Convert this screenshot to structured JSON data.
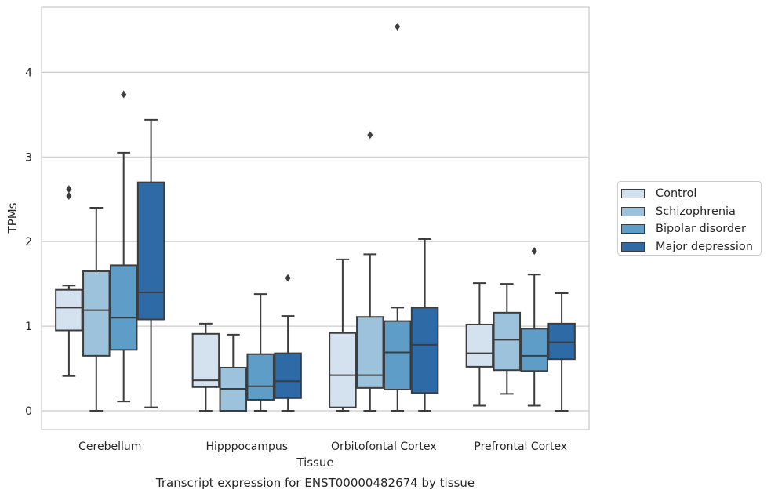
{
  "chart_data": {
    "type": "box",
    "title": "",
    "xlabel": "Tissue",
    "ylabel": "TPMs",
    "caption": "Transcript expression for ENST00000482674 by tissue",
    "ylim": [
      -0.22,
      4.77
    ],
    "yticks": [
      "0",
      "1",
      "2",
      "3",
      "4"
    ],
    "grid": "horizontal",
    "legend_position": "right",
    "categories": [
      "Cerebellum",
      "Hipppocampus",
      "Orbitofontal Cortex",
      "Prefrontal Cortex"
    ],
    "series": [
      {
        "name": "Control",
        "color": "#d4e2f0",
        "boxes": [
          {
            "min": 0.41,
            "q1": 0.95,
            "median": 1.22,
            "q3": 1.43,
            "max": 1.48,
            "outliers": [
              2.54,
              2.62
            ]
          },
          {
            "min": 0.0,
            "q1": 0.28,
            "median": 0.36,
            "q3": 0.91,
            "max": 1.03,
            "outliers": []
          },
          {
            "min": 0.0,
            "q1": 0.04,
            "median": 0.42,
            "q3": 0.92,
            "max": 1.79,
            "outliers": []
          },
          {
            "min": 0.06,
            "q1": 0.52,
            "median": 0.68,
            "q3": 1.02,
            "max": 1.51,
            "outliers": []
          }
        ]
      },
      {
        "name": "Schizophrenia",
        "color": "#9cc2dc",
        "boxes": [
          {
            "min": 0.0,
            "q1": 0.65,
            "median": 1.19,
            "q3": 1.65,
            "max": 2.4,
            "outliers": []
          },
          {
            "min": 0.0,
            "q1": 0.0,
            "median": 0.26,
            "q3": 0.51,
            "max": 0.9,
            "outliers": []
          },
          {
            "min": 0.0,
            "q1": 0.27,
            "median": 0.42,
            "q3": 1.11,
            "max": 1.85,
            "outliers": [
              3.26
            ]
          },
          {
            "min": 0.2,
            "q1": 0.48,
            "median": 0.84,
            "q3": 1.16,
            "max": 1.5,
            "outliers": []
          }
        ]
      },
      {
        "name": "Bipolar disorder",
        "color": "#5d9dc8",
        "boxes": [
          {
            "min": 0.11,
            "q1": 0.72,
            "median": 1.1,
            "q3": 1.72,
            "max": 3.05,
            "outliers": [
              3.74
            ]
          },
          {
            "min": 0.0,
            "q1": 0.13,
            "median": 0.29,
            "q3": 0.67,
            "max": 1.38,
            "outliers": []
          },
          {
            "min": 0.0,
            "q1": 0.25,
            "median": 0.69,
            "q3": 1.06,
            "max": 1.22,
            "outliers": [
              4.54
            ]
          },
          {
            "min": 0.06,
            "q1": 0.47,
            "median": 0.65,
            "q3": 0.97,
            "max": 1.61,
            "outliers": [
              1.89
            ]
          }
        ]
      },
      {
        "name": "Major depression",
        "color": "#2d6aa6",
        "boxes": [
          {
            "min": 0.04,
            "q1": 1.08,
            "median": 1.4,
            "q3": 2.7,
            "max": 3.44,
            "outliers": []
          },
          {
            "min": 0.0,
            "q1": 0.15,
            "median": 0.35,
            "q3": 0.68,
            "max": 1.12,
            "outliers": [
              1.57
            ]
          },
          {
            "min": 0.0,
            "q1": 0.21,
            "median": 0.78,
            "q3": 1.22,
            "max": 2.03,
            "outliers": []
          },
          {
            "min": 0.0,
            "q1": 0.61,
            "median": 0.81,
            "q3": 1.03,
            "max": 1.39,
            "outliers": []
          }
        ]
      }
    ]
  }
}
